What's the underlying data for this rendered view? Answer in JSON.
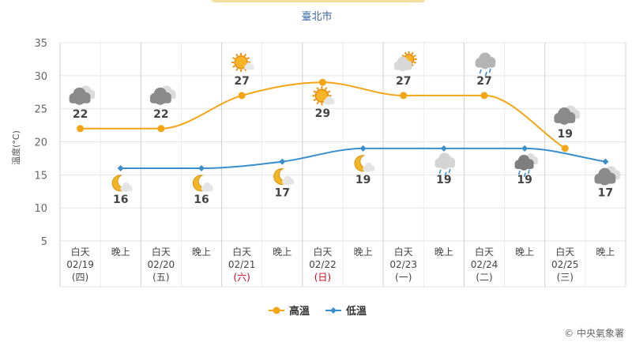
{
  "chart_data": {
    "type": "line",
    "title": "臺北市",
    "ylabel": "溫度(°C)",
    "ylim": [
      5,
      35
    ],
    "yticks": [
      5,
      10,
      15,
      20,
      25,
      30,
      35
    ],
    "grid": true,
    "legend_position": "bottom-center",
    "days": [
      {
        "date": "02/19",
        "weekday": "(四)",
        "weekday_color": "#444444"
      },
      {
        "date": "02/20",
        "weekday": "(五)",
        "weekday_color": "#444444"
      },
      {
        "date": "02/21",
        "weekday": "(六)",
        "weekday_color": "#d0021b"
      },
      {
        "date": "02/22",
        "weekday": "(日)",
        "weekday_color": "#d0021b"
      },
      {
        "date": "02/23",
        "weekday": "(一)",
        "weekday_color": "#444444"
      },
      {
        "date": "02/24",
        "weekday": "(二)",
        "weekday_color": "#444444"
      },
      {
        "date": "02/25",
        "weekday": "(三)",
        "weekday_color": "#444444"
      }
    ],
    "period_labels": {
      "day": "白天",
      "night": "晚上"
    },
    "series": [
      {
        "name": "高溫",
        "color": "#f3a514",
        "period": "day",
        "values": [
          22,
          22,
          27,
          29,
          27,
          27,
          19
        ],
        "icons": [
          "cloudy-icon",
          "cloudy-icon",
          "sunny-icon",
          "sunny-cloud-icon",
          "partly-cloudy-icon",
          "shower-icon",
          "cloudy-icon"
        ]
      },
      {
        "name": "低溫",
        "color": "#3a8ecb",
        "period": "night",
        "values": [
          16,
          16,
          17,
          19,
          19,
          19,
          17
        ],
        "icons": [
          "moon-cloud-icon",
          "moon-cloud-icon",
          "moon-cloud-icon",
          "moon-cloud-icon",
          "rain-icon",
          "night-rain-icon",
          "cloudy-icon"
        ]
      }
    ]
  },
  "copyright": "© 中央氣象署",
  "colors": {
    "grid": "#e4e4e4",
    "separator": "#d0d0d0",
    "axis_text": "#666666"
  }
}
